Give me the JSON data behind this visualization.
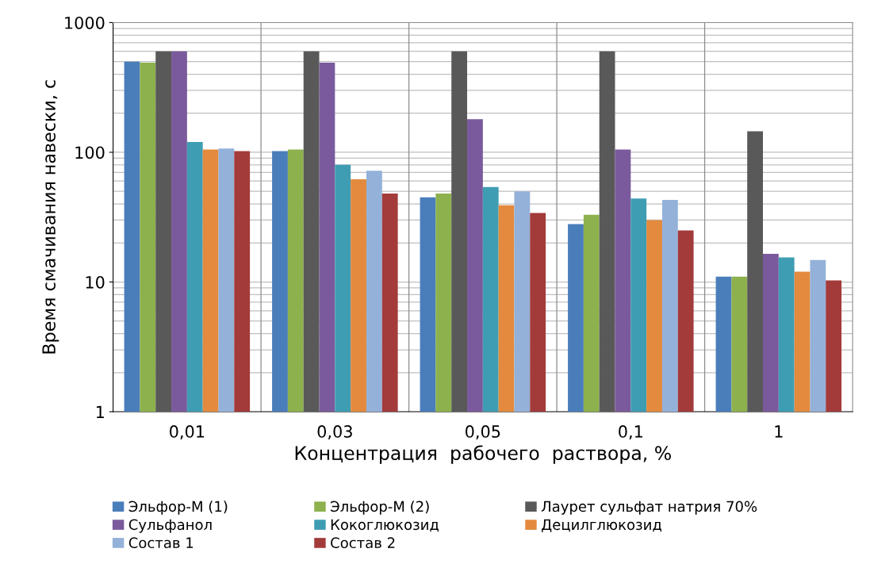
{
  "chart_data": {
    "type": "bar",
    "xlabel": "Концентрация  рабочего  раствора, %",
    "ylabel": "Время смачивания навески, с",
    "categories": [
      "0,01",
      "0,03",
      "0,05",
      "0,1",
      "1"
    ],
    "series": [
      {
        "name": "Эльфор-М (1)",
        "color": "#4a7ebb",
        "values": [
          500,
          102,
          45,
          28,
          11
        ]
      },
      {
        "name": "Эльфор-М (2)",
        "color": "#8db14c",
        "values": [
          490,
          105,
          48,
          33,
          11
        ]
      },
      {
        "name": "Лаурет сульфат натрия 70%",
        "color": "#595959",
        "values": [
          600,
          600,
          600,
          600,
          145
        ]
      },
      {
        "name": "Сульфанол",
        "color": "#7a5a9c",
        "values": [
          600,
          490,
          180,
          105,
          16.5
        ]
      },
      {
        "name": "Кокоглюкозид",
        "color": "#3f9db3",
        "values": [
          120,
          80,
          54,
          44,
          15.5
        ]
      },
      {
        "name": "Децилглюкозид",
        "color": "#e38a3e",
        "values": [
          105,
          62,
          39,
          30,
          12
        ]
      },
      {
        "name": "Состав 1",
        "color": "#94b1d9",
        "values": [
          107,
          72,
          50,
          43,
          14.8
        ]
      },
      {
        "name": "Состав 2",
        "color": "#a33b3a",
        "values": [
          102,
          48,
          34,
          25,
          10.3
        ]
      }
    ],
    "log": "y",
    "ylim": [
      1,
      1000
    ],
    "yticks": [
      1,
      10,
      100,
      1000
    ],
    "grid": true,
    "legend": "bottom"
  }
}
